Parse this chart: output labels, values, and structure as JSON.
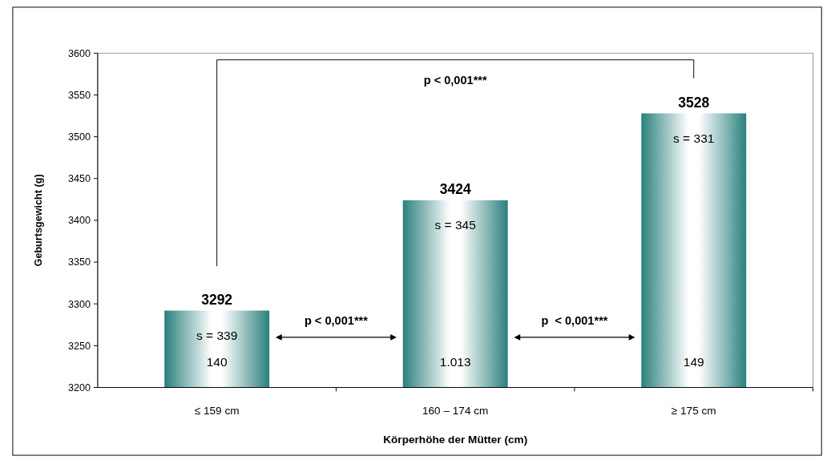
{
  "chart_data": {
    "type": "bar",
    "xlabel": "Körperhöhe der Mütter (cm)",
    "ylabel": "Geburtsgewicht (g)",
    "categories": [
      "≤ 159 cm",
      "160 – 174 cm",
      "≥ 175 cm"
    ],
    "values": [
      3292,
      3424,
      3528
    ],
    "color": "#2a807d",
    "ylim": [
      3200,
      3600
    ],
    "yticks": [
      3200,
      3250,
      3300,
      3350,
      3400,
      3450,
      3500,
      3550,
      3600
    ],
    "data_labels": true,
    "grid": false,
    "annotations": [
      "s = 339",
      "140",
      "s = 345",
      "1.013",
      "s = 331",
      "149",
      "p < 0,001***",
      "p < 0,001***",
      "p  < 0,001***"
    ]
  }
}
